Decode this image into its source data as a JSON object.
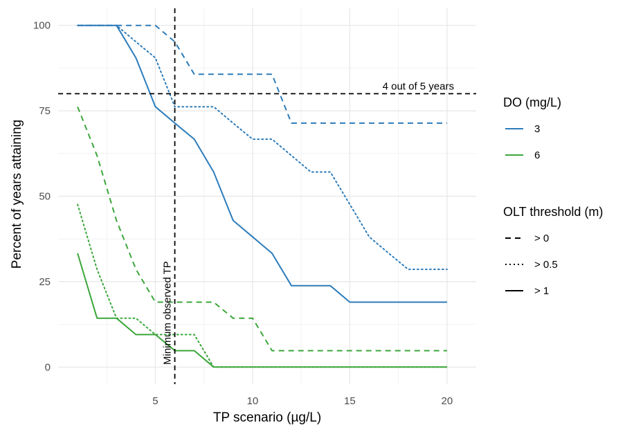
{
  "chart_data": {
    "type": "line",
    "xlabel": "TP scenario (µg/L)",
    "ylabel": "Percent of years attaining",
    "xlim": [
      0,
      21.5
    ],
    "ylim": [
      -5,
      105
    ],
    "x_ticks": [
      5,
      10,
      15,
      20
    ],
    "y_ticks": [
      0,
      25,
      50,
      75,
      100
    ],
    "x_tick_labels": [
      "5",
      "10",
      "15",
      "20"
    ],
    "y_tick_labels": [
      "0",
      "25",
      "50",
      "75",
      "100"
    ],
    "grid": true,
    "colors": {
      "3": "#2b7bba",
      "6": "#3aa639"
    },
    "series": [
      {
        "do": "3",
        "olt": "> 0",
        "dash": "dashed",
        "x": [
          1,
          2,
          3,
          4,
          5,
          6,
          7,
          8,
          9,
          10,
          11,
          12,
          13,
          14,
          15,
          16,
          17,
          18,
          19,
          20
        ],
        "y": [
          100,
          100,
          100,
          100,
          100,
          95.2,
          85.7,
          85.7,
          85.7,
          85.7,
          85.7,
          71.4,
          71.4,
          71.4,
          71.4,
          71.4,
          71.4,
          71.4,
          71.4,
          71.4
        ]
      },
      {
        "do": "3",
        "olt": "> 0.5",
        "dash": "dotted",
        "x": [
          1,
          2,
          3,
          4,
          5,
          6,
          7,
          8,
          9,
          10,
          11,
          12,
          13,
          14,
          15,
          16,
          17,
          18,
          19,
          20
        ],
        "y": [
          100,
          100,
          100,
          95.2,
          90.5,
          76.2,
          76.2,
          76.2,
          71.4,
          66.7,
          66.7,
          61.9,
          57.1,
          57.1,
          47.6,
          38.1,
          33.3,
          28.6,
          28.6,
          28.6
        ]
      },
      {
        "do": "3",
        "olt": "> 1",
        "dash": "solid",
        "x": [
          1,
          2,
          3,
          4,
          5,
          6,
          7,
          8,
          9,
          10,
          11,
          12,
          13,
          14,
          15,
          16,
          17,
          18,
          19,
          20
        ],
        "y": [
          100,
          100,
          100,
          90.5,
          76.2,
          71.4,
          66.7,
          57.1,
          42.9,
          38.1,
          33.3,
          23.8,
          23.8,
          23.8,
          19,
          19,
          19,
          19,
          19,
          19
        ]
      },
      {
        "do": "6",
        "olt": "> 0",
        "dash": "dashed",
        "x": [
          1,
          2,
          3,
          4,
          5,
          6,
          7,
          8,
          9,
          10,
          11,
          12,
          13,
          14,
          15,
          16,
          17,
          18,
          19,
          20
        ],
        "y": [
          76.2,
          61.9,
          42.9,
          28.6,
          19,
          19,
          19,
          19,
          14.3,
          14.3,
          4.8,
          4.8,
          4.8,
          4.8,
          4.8,
          4.8,
          4.8,
          4.8,
          4.8,
          4.8
        ]
      },
      {
        "do": "6",
        "olt": "> 0.5",
        "dash": "dotted",
        "x": [
          1,
          2,
          3,
          4,
          5,
          6,
          7,
          8,
          9,
          10,
          11,
          12,
          13,
          14,
          15,
          16,
          17,
          18,
          19,
          20
        ],
        "y": [
          47.6,
          28.6,
          14.3,
          14.3,
          9.5,
          9.5,
          9.5,
          0,
          0,
          0,
          0,
          0,
          0,
          0,
          0,
          0,
          0,
          0,
          0,
          0
        ]
      },
      {
        "do": "6",
        "olt": "> 1",
        "dash": "solid",
        "x": [
          1,
          2,
          3,
          4,
          5,
          6,
          7,
          8,
          9,
          10,
          11,
          12,
          13,
          14,
          15,
          16,
          17,
          18,
          19,
          20
        ],
        "y": [
          33.3,
          14.3,
          14.3,
          9.5,
          9.5,
          4.8,
          4.8,
          0,
          0,
          0,
          0,
          0,
          0,
          0,
          0,
          0,
          0,
          0,
          0,
          0
        ]
      }
    ],
    "reference_lines": {
      "horizontal": {
        "y": 80,
        "label": "4 out of 5 years"
      },
      "vertical": {
        "x": 6,
        "label": "Minimum observed TP"
      }
    },
    "legend": {
      "placement": "right",
      "color_title": "DO (mg/L)",
      "color_items": [
        "3",
        "6"
      ],
      "linetype_title": "OLT threshold (m)",
      "linetype_items": [
        "> 0",
        "> 0.5",
        "> 1"
      ]
    }
  }
}
